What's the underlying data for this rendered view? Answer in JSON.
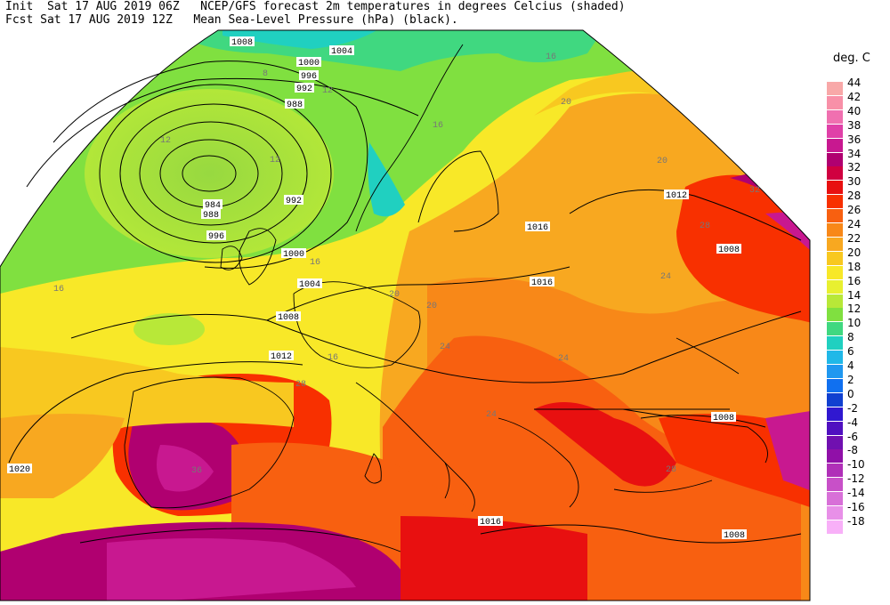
{
  "header": {
    "line1": "Init  Sat 17 AUG 2019 06Z   NCEP/GFS forecast 2m temperatures in degrees Celcius (shaded)",
    "line2": "Fcst Sat 17 AUG 2019 12Z   Mean Sea-Level Pressure (hPa) (black)."
  },
  "legend": {
    "title": "deg. C",
    "entries": [
      {
        "label": "44",
        "color": "#f8a8a8"
      },
      {
        "label": "42",
        "color": "#f890a8"
      },
      {
        "label": "40",
        "color": "#f070b0"
      },
      {
        "label": "38",
        "color": "#e040a8"
      },
      {
        "label": "36",
        "color": "#c81890"
      },
      {
        "label": "34",
        "color": "#b00070"
      },
      {
        "label": "32",
        "color": "#d00040"
      },
      {
        "label": "30",
        "color": "#e81010"
      },
      {
        "label": "28",
        "color": "#f83000"
      },
      {
        "label": "26",
        "color": "#f86010"
      },
      {
        "label": "24",
        "color": "#f88818"
      },
      {
        "label": "22",
        "color": "#f8a820"
      },
      {
        "label": "20",
        "color": "#f8c820"
      },
      {
        "label": "18",
        "color": "#f8e828"
      },
      {
        "label": "16",
        "color": "#e8f030"
      },
      {
        "label": "14",
        "color": "#b8e838"
      },
      {
        "label": "12",
        "color": "#80e040"
      },
      {
        "label": "10",
        "color": "#40d880"
      },
      {
        "label": "8",
        "color": "#20d0c0"
      },
      {
        "label": "6",
        "color": "#20b8e8"
      },
      {
        "label": "4",
        "color": "#2098f0"
      },
      {
        "label": "2",
        "color": "#1070f0"
      },
      {
        "label": "0",
        "color": "#1040d0"
      },
      {
        "label": "-2",
        "color": "#3018d0"
      },
      {
        "label": "-4",
        "color": "#5010c0"
      },
      {
        "label": "-6",
        "color": "#7010b0"
      },
      {
        "label": "-8",
        "color": "#9010a8"
      },
      {
        "label": "-10",
        "color": "#b030b8"
      },
      {
        "label": "-12",
        "color": "#c850c8"
      },
      {
        "label": "-14",
        "color": "#d870d8"
      },
      {
        "label": "-16",
        "color": "#e890e8"
      },
      {
        "label": "-18",
        "color": "#f8b0f8"
      }
    ]
  },
  "isobar_labels": [
    "1008",
    "1004",
    "1000",
    "996",
    "992",
    "988",
    "984",
    "988",
    "992",
    "996",
    "1000",
    "1004",
    "1008",
    "1012",
    "1016",
    "1016",
    "1012",
    "1008",
    "1008",
    "1016",
    "1008",
    "1020"
  ],
  "temp_labels": [
    "8",
    "12",
    "12",
    "12",
    "16",
    "16",
    "16",
    "16",
    "20",
    "20",
    "24",
    "24",
    "28",
    "28",
    "32",
    "36",
    "20",
    "24",
    "28",
    "24",
    "16",
    "20"
  ]
}
